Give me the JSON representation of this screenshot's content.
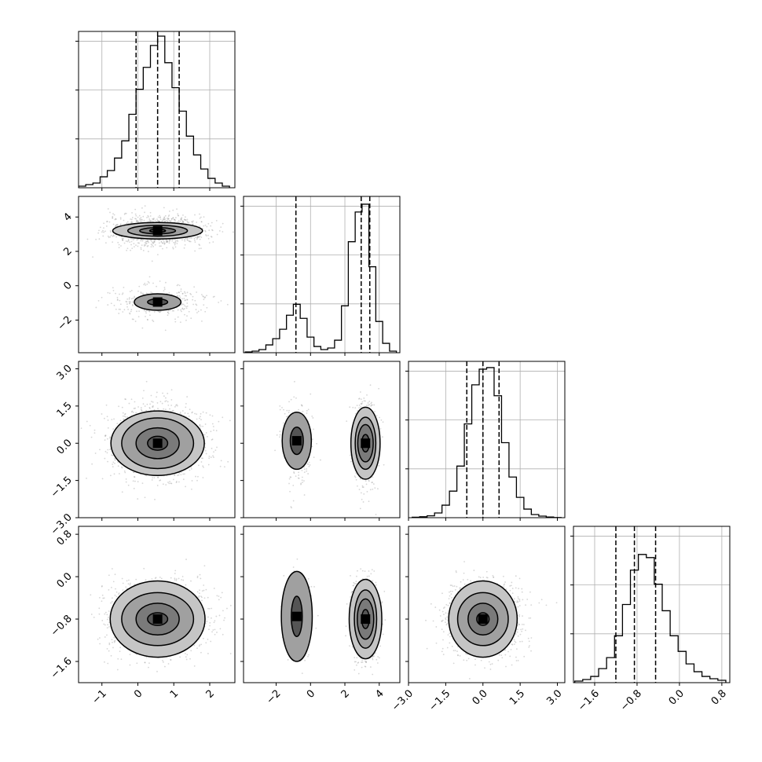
{
  "chart_data": {
    "type": "corner",
    "n_params": 4,
    "axes": [
      {
        "range": [
          -1.65,
          2.7
        ],
        "ticks": [
          -1,
          0,
          1,
          2
        ],
        "tick_labels": [
          "−1",
          "0",
          "1",
          "2"
        ]
      },
      {
        "range": [
          -3.9,
          5.2
        ],
        "ticks": [
          -2,
          0,
          2,
          4
        ],
        "tick_labels": [
          "−2",
          "0",
          "2",
          "4"
        ]
      },
      {
        "range": [
          -3.0,
          3.3
        ],
        "ticks": [
          -3.0,
          -1.5,
          0.0,
          1.5,
          3.0
        ],
        "tick_labels": [
          "−3.0",
          "−1.5",
          "0.0",
          "1.5",
          "3.0"
        ]
      },
      {
        "range": [
          -2.0,
          0.95
        ],
        "ticks": [
          -1.6,
          -0.8,
          0.0,
          0.8
        ],
        "tick_labels": [
          "−1.6",
          "−0.8",
          "0.0",
          "0.8"
        ]
      }
    ],
    "quantiles": [
      [
        -0.05,
        0.55,
        1.15
      ],
      [
        -0.85,
        2.95,
        3.45
      ],
      [
        -0.65,
        0.0,
        0.65
      ],
      [
        -1.2,
        -0.85,
        -0.45
      ]
    ],
    "histograms": [
      {
        "x": [
          -1.55,
          -1.35,
          -1.15,
          -0.95,
          -0.75,
          -0.55,
          -0.35,
          -0.15,
          0.05,
          0.25,
          0.45,
          0.65,
          0.85,
          1.05,
          1.25,
          1.45,
          1.65,
          1.85,
          2.05,
          2.25,
          2.45
        ],
        "counts": [
          0.01,
          0.02,
          0.03,
          0.07,
          0.11,
          0.19,
          0.3,
          0.47,
          0.63,
          0.77,
          0.91,
          0.97,
          0.8,
          0.64,
          0.49,
          0.33,
          0.21,
          0.12,
          0.06,
          0.03,
          0.01
        ]
      },
      {
        "x": [
          -3.6,
          -3.2,
          -2.8,
          -2.4,
          -2.0,
          -1.6,
          -1.2,
          -0.8,
          -0.4,
          0.0,
          0.4,
          0.8,
          1.2,
          1.6,
          2.0,
          2.4,
          2.8,
          3.2,
          3.6,
          4.0,
          4.4,
          4.8
        ],
        "counts": [
          0.005,
          0.01,
          0.02,
          0.05,
          0.09,
          0.15,
          0.24,
          0.31,
          0.22,
          0.1,
          0.04,
          0.02,
          0.03,
          0.08,
          0.3,
          0.71,
          0.9,
          0.95,
          0.55,
          0.2,
          0.06,
          0.01
        ]
      },
      {
        "x": [
          -2.7,
          -2.4,
          -2.1,
          -1.8,
          -1.5,
          -1.2,
          -0.9,
          -0.6,
          -0.3,
          0.0,
          0.3,
          0.6,
          0.9,
          1.2,
          1.5,
          1.8,
          2.1,
          2.4,
          2.7,
          3.0
        ],
        "counts": [
          0.003,
          0.006,
          0.012,
          0.03,
          0.08,
          0.17,
          0.33,
          0.6,
          0.85,
          0.95,
          0.96,
          0.78,
          0.48,
          0.26,
          0.13,
          0.055,
          0.02,
          0.01,
          0.004,
          0.001
        ]
      },
      {
        "x": [
          -1.9,
          -1.75,
          -1.6,
          -1.45,
          -1.3,
          -1.15,
          -1.0,
          -0.85,
          -0.7,
          -0.55,
          -0.4,
          -0.25,
          -0.1,
          0.05,
          0.2,
          0.35,
          0.5,
          0.65,
          0.8
        ],
        "counts": [
          0.01,
          0.02,
          0.04,
          0.09,
          0.16,
          0.3,
          0.5,
          0.72,
          0.82,
          0.8,
          0.63,
          0.46,
          0.3,
          0.2,
          0.12,
          0.07,
          0.04,
          0.025,
          0.015
        ]
      }
    ],
    "joint": [
      {
        "row": 1,
        "col": 0,
        "x_spread": 0.58,
        "peaks": [
          {
            "center": [
              0.55,
              3.2
            ],
            "sigma": [
              0.58,
              0.38
            ],
            "weight": 0.78
          },
          {
            "center": [
              0.55,
              -0.95
            ],
            "sigma": [
              0.58,
              0.45
            ],
            "weight": 0.22
          }
        ],
        "contours": [
          {
            "center": [
              0.55,
              3.2
            ],
            "r": [
              [
                0.22,
                0.09
              ],
              [
                0.5,
                0.18
              ],
              [
                0.83,
                0.32
              ],
              [
                1.25,
                0.48
              ]
            ]
          },
          {
            "center": [
              0.55,
              -0.95
            ],
            "r": [
              [
                0.28,
                0.18
              ],
              [
                0.65,
                0.48
              ]
            ]
          }
        ]
      },
      {
        "row": 2,
        "col": 0,
        "x_spread": 0.58,
        "peaks": [
          {
            "center": [
              0.55,
              0.0
            ],
            "sigma": [
              0.58,
              0.65
            ],
            "weight": 1.0
          }
        ],
        "contours": [
          {
            "center": [
              0.55,
              0.0
            ],
            "r": [
              [
                0.28,
                0.28
              ],
              [
                0.6,
                0.62
              ],
              [
                1.0,
                1.02
              ],
              [
                1.3,
                1.3
              ]
            ]
          }
        ]
      },
      {
        "row": 2,
        "col": 1,
        "x_spread": 1.0,
        "peaks": [
          {
            "center": [
              -0.8,
              0.1
            ],
            "sigma": [
              0.35,
              0.7
            ],
            "weight": 0.22
          },
          {
            "center": [
              3.2,
              0.0
            ],
            "sigma": [
              0.3,
              0.65
            ],
            "weight": 0.78
          }
        ],
        "contours": [
          {
            "center": [
              -0.8,
              0.1
            ],
            "r": [
              [
                0.38,
                0.55
              ],
              [
                0.85,
                1.15
              ]
            ]
          },
          {
            "center": [
              3.2,
              0.0
            ],
            "r": [
              [
                0.22,
                0.35
              ],
              [
                0.45,
                0.75
              ],
              [
                0.6,
                1.05
              ],
              [
                0.85,
                1.45
              ]
            ]
          }
        ]
      },
      {
        "row": 3,
        "col": 0,
        "x_spread": 0.58,
        "peaks": [
          {
            "center": [
              0.55,
              -0.8
            ],
            "sigma": [
              0.58,
              0.3
            ],
            "weight": 1.0
          }
        ],
        "contours": [
          {
            "center": [
              0.55,
              -0.8
            ],
            "r": [
              [
                0.28,
                0.12
              ],
              [
                0.6,
                0.3
              ],
              [
                1.0,
                0.5
              ],
              [
                1.32,
                0.72
              ]
            ]
          }
        ]
      },
      {
        "row": 3,
        "col": 1,
        "x_spread": 1.0,
        "peaks": [
          {
            "center": [
              -0.8,
              -0.75
            ],
            "sigma": [
              0.35,
              0.3
            ],
            "weight": 0.22
          },
          {
            "center": [
              3.2,
              -0.8
            ],
            "sigma": [
              0.3,
              0.3
            ],
            "weight": 0.78
          }
        ],
        "contours": [
          {
            "center": [
              -0.8,
              -0.75
            ],
            "r": [
              [
                0.32,
                0.38
              ],
              [
                0.9,
                0.85
              ]
            ]
          },
          {
            "center": [
              3.2,
              -0.8
            ],
            "r": [
              [
                0.22,
                0.18
              ],
              [
                0.48,
                0.38
              ],
              [
                0.65,
                0.55
              ],
              [
                0.95,
                0.75
              ]
            ]
          }
        ]
      },
      {
        "row": 3,
        "col": 2,
        "x_spread": 0.65,
        "peaks": [
          {
            "center": [
              0.0,
              -0.8
            ],
            "sigma": [
              0.65,
              0.3
            ],
            "weight": 1.0
          }
        ],
        "contours": [
          {
            "center": [
              0.0,
              -0.8
            ],
            "r": [
              [
                0.25,
                0.12
              ],
              [
                0.6,
                0.3
              ],
              [
                1.02,
                0.5
              ],
              [
                1.38,
                0.72
              ]
            ]
          }
        ]
      }
    ]
  }
}
